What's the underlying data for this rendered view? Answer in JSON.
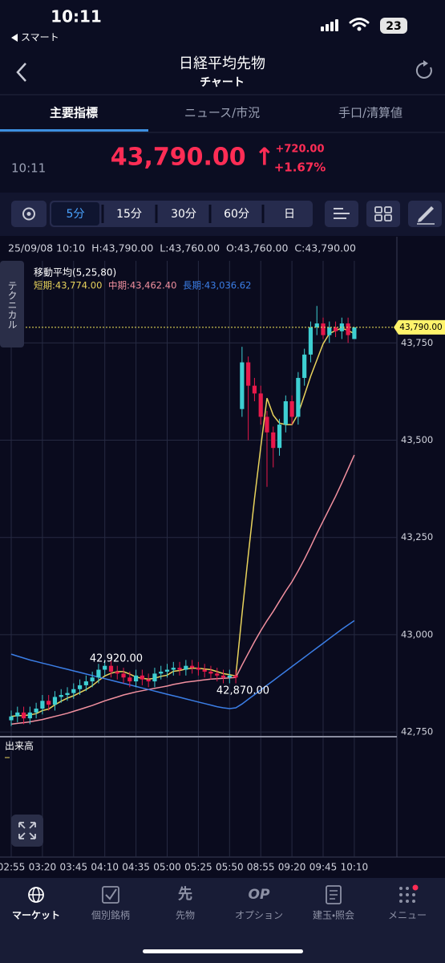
{
  "status_bar": {
    "time": "10:11",
    "back_app": "スマート",
    "battery": "23"
  },
  "header": {
    "title": "日経平均先物",
    "subtitle": "チャート"
  },
  "tabs": [
    "主要指標",
    "ニュース/市況",
    "手口/清算値"
  ],
  "quote": {
    "time": "10:11",
    "price": "43,790.00 ↑",
    "change": "+720.00",
    "change_pct": "+1.67%"
  },
  "toolbar": {
    "intervals": [
      "5分",
      "15分",
      "30分",
      "60分",
      "日"
    ]
  },
  "ohlc_info": "25/09/08 10:10  H:43,790.00  L:43,760.00  O:43,760.00  C:43,790.00",
  "side_tab": "テクニカル",
  "chart_data": {
    "type": "candlestick",
    "categories": [
      "02:55",
      null,
      null,
      null,
      null,
      "03:20",
      null,
      null,
      null,
      null,
      "03:45",
      null,
      null,
      null,
      null,
      "04:10",
      null,
      null,
      null,
      null,
      "04:35",
      null,
      null,
      null,
      null,
      "05:00",
      null,
      null,
      null,
      null,
      "05:25",
      null,
      null,
      null,
      null,
      "05:50",
      null,
      null,
      null,
      null,
      "08:55",
      null,
      null,
      null,
      null,
      "09:20",
      null,
      null,
      null,
      null,
      "09:45",
      null,
      null,
      null,
      null,
      "10:10"
    ],
    "open": [
      42780,
      42790,
      42800,
      42785,
      42800,
      42810,
      42830,
      42820,
      42840,
      42845,
      42850,
      42860,
      42870,
      42880,
      42890,
      42910,
      42920,
      42905,
      42900,
      42890,
      42880,
      42895,
      42885,
      42880,
      42900,
      42905,
      42910,
      42915,
      42910,
      42920,
      42915,
      42910,
      42905,
      42900,
      42895,
      42890,
      42895,
      43580,
      43700,
      43640,
      43620,
      43560,
      43520,
      43480,
      43540,
      43600,
      43560,
      43660,
      43720,
      43790,
      43800,
      43770,
      43790,
      43780,
      43800,
      43760
    ],
    "high": [
      42805,
      42815,
      42815,
      42815,
      42825,
      42845,
      42845,
      42855,
      42860,
      42865,
      42875,
      42885,
      42895,
      42905,
      42925,
      42935,
      42935,
      42920,
      42915,
      42905,
      42910,
      42910,
      42900,
      42915,
      42920,
      42925,
      42930,
      42930,
      42935,
      42935,
      42930,
      42925,
      42920,
      42915,
      42910,
      42910,
      42910,
      43740,
      43715,
      43660,
      43640,
      43575,
      43535,
      43555,
      43615,
      43615,
      43675,
      43735,
      43805,
      43845,
      43815,
      43805,
      43805,
      43815,
      43815,
      43790
    ],
    "low": [
      42765,
      42775,
      42770,
      42770,
      42785,
      42795,
      42805,
      42805,
      42825,
      42830,
      42835,
      42845,
      42855,
      42865,
      42875,
      42895,
      42890,
      42885,
      42875,
      42865,
      42865,
      42870,
      42865,
      42865,
      42885,
      42890,
      42895,
      42895,
      42895,
      42900,
      42895,
      42890,
      42885,
      42880,
      42875,
      42875,
      42875,
      43560,
      43500,
      43600,
      43540,
      43380,
      43430,
      43460,
      43520,
      43540,
      43540,
      43640,
      43700,
      43770,
      43760,
      43750,
      43765,
      43760,
      43750,
      43760
    ],
    "close": [
      42790,
      42800,
      42785,
      42800,
      42810,
      42830,
      42820,
      42840,
      42845,
      42850,
      42860,
      42870,
      42880,
      42890,
      42910,
      42920,
      42905,
      42900,
      42890,
      42880,
      42895,
      42885,
      42880,
      42900,
      42905,
      42910,
      42915,
      42910,
      42920,
      42915,
      42910,
      42905,
      42900,
      42895,
      42890,
      42895,
      42890,
      43700,
      43640,
      43620,
      43560,
      43520,
      43480,
      43540,
      43600,
      43560,
      43660,
      43720,
      43790,
      43800,
      43770,
      43790,
      43780,
      43800,
      43770,
      43790
    ],
    "up_color": "#3ecfd2",
    "down_color": "#e8194b",
    "ylim": [
      42744,
      43961
    ],
    "yticks": [
      {
        "value": 42750,
        "label": "42,750"
      },
      {
        "value": 43000,
        "label": "43,000"
      },
      {
        "value": 43250,
        "label": "43,250"
      },
      {
        "value": 43500,
        "label": "43,500"
      },
      {
        "value": 43750,
        "label": "43,750"
      }
    ],
    "current_price": {
      "value": 43790,
      "label": "43,790.00"
    },
    "grid": true,
    "ma": {
      "title": "移動平均(5,25,80)",
      "series": [
        {
          "name": "短期:43,774.00",
          "color": "#e8d35c",
          "values": [
            42790,
            42792,
            42792,
            42794,
            42797,
            42805,
            42809,
            42820,
            42829,
            42837,
            42843,
            42851,
            42859,
            42869,
            42882,
            42894,
            42901,
            42905,
            42905,
            42899,
            42891,
            42888,
            42886,
            42888,
            42893,
            42896,
            42906,
            42908,
            42912,
            42914,
            42914,
            42912,
            42910,
            42905,
            42900,
            42897,
            42894,
            43054,
            43204,
            43349,
            43482,
            43608,
            43564,
            43544,
            43540,
            43540,
            43568,
            43616,
            43664,
            43706,
            43748,
            43774,
            43782,
            43788,
            43782,
            43774
          ]
        },
        {
          "name": "中期:43,462.40",
          "color": "#f2909f",
          "values": [
            42770,
            42772,
            42774,
            42776,
            42779,
            42782,
            42786,
            42790,
            42794,
            42798,
            42803,
            42808,
            42813,
            42818,
            42824,
            42830,
            42835,
            42840,
            42845,
            42849,
            42853,
            42856,
            42859,
            42862,
            42865,
            42868,
            42872,
            42875,
            42878,
            42880,
            42882,
            42884,
            42886,
            42887,
            42888,
            42889,
            42890,
            42922,
            42952,
            42982,
            43010,
            43036,
            43060,
            43086,
            43112,
            43136,
            43164,
            43194,
            43226,
            43260,
            43292,
            43324,
            43356,
            43390,
            43426,
            43462
          ]
        },
        {
          "name": "長期:43,036.62",
          "color": "#3b7ee6",
          "values": [
            42950,
            42945,
            42940,
            42935,
            42931,
            42927,
            42923,
            42919,
            42915,
            42911,
            42907,
            42903,
            42899,
            42895,
            42891,
            42887,
            42883,
            42879,
            42875,
            42871,
            42867,
            42863,
            42859,
            42855,
            42851,
            42847,
            42843,
            42839,
            42835,
            42831,
            42827,
            42823,
            42819,
            42815,
            42812,
            42810,
            42812,
            42822,
            42834,
            42846,
            42858,
            42870,
            42882,
            42894,
            42906,
            42918,
            42930,
            42942,
            42954,
            42966,
            42978,
            42990,
            43002,
            43014,
            43025,
            43036
          ]
        }
      ]
    },
    "annotations": [
      "42,920.00",
      "42,870.00"
    ],
    "volume_label": "出来高"
  },
  "bottom_nav": [
    {
      "label": "マーケット"
    },
    {
      "label": "個別銘柄"
    },
    {
      "label": "先物",
      "icon": "先"
    },
    {
      "label": "オプション",
      "icon": "OP"
    },
    {
      "label": "建玉・照会"
    },
    {
      "label": "メニュー"
    }
  ]
}
